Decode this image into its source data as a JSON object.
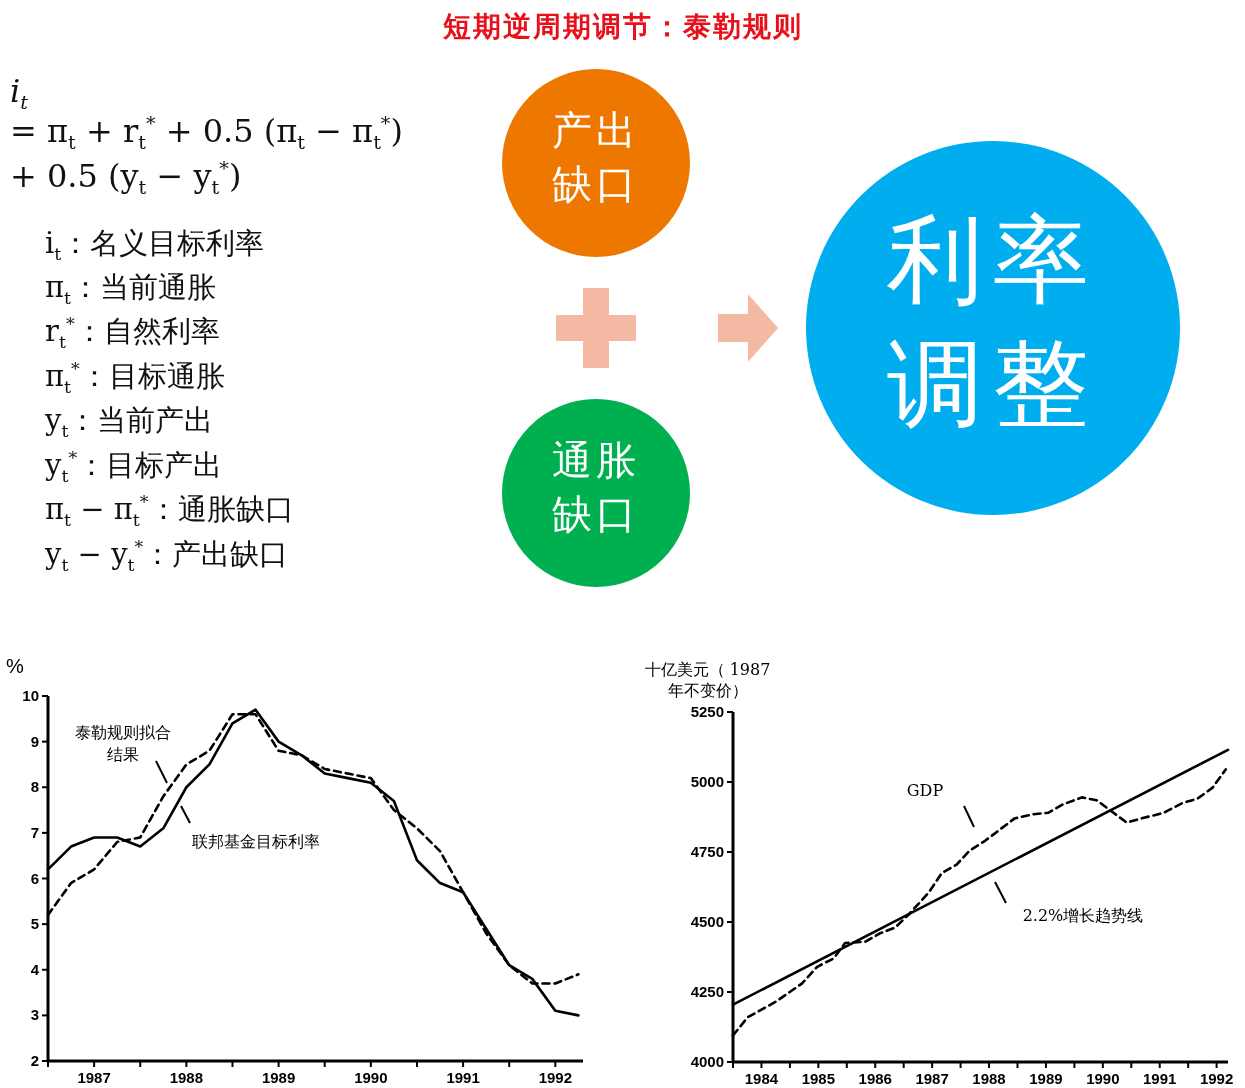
{
  "chart_data": [
    {
      "type": "other",
      "title": "短期逆周期调节：泰勒规则",
      "annotations": [
        "i$_{t}$",
        "= π$_{t}$ + r$_{t}$$^{*}$ + 0.5 (π$_{t}$ − π$_{t}$$^{*}$)",
        "+ 0.5 (y$_{t}$ − y$_{t}$$^{*}$)",
        "i$_{t}$：名义目标利率",
        "π$_{t}$：当前通胀",
        "r$_{t}$$^{*}$：自然利率",
        "π$_{t}$$^{*}$：目标通胀",
        "y$_{t}$：当前产出",
        "y$_{t}$$^{*}$：目标产出",
        "π$_{t}$ − π$_{t}$$^{*}$：通胀缺口",
        "y$_{t}$ − y$_{t}$$^{*}$：产出缺口",
        "产出缺口",
        "通胀缺口",
        "利率调整"
      ]
    },
    {
      "type": "line",
      "ylabel": "%",
      "x": [
        1986.5,
        1986.75,
        1987,
        1987.25,
        1987.5,
        1987.75,
        1988,
        1988.25,
        1988.5,
        1988.75,
        1989,
        1989.25,
        1989.5,
        1989.75,
        1990,
        1990.25,
        1990.5,
        1990.75,
        1991,
        1991.25,
        1991.5,
        1991.75,
        1992,
        1992.25
      ],
      "series": [
        {
          "color": "#000000",
          "line_style": "solid",
          "values": [
            6.2,
            6.7,
            6.9,
            6.9,
            6.7,
            7.1,
            8.0,
            8.5,
            9.4,
            9.7,
            9.0,
            8.7,
            8.3,
            8.2,
            8.1,
            7.7,
            6.4,
            5.9,
            5.7,
            4.9,
            4.1,
            3.8,
            3.1,
            3.0
          ]
        },
        {
          "color": "#000000",
          "line_style": "dashed",
          "values": [
            5.2,
            5.9,
            6.2,
            6.8,
            6.9,
            7.8,
            8.5,
            8.8,
            9.6,
            9.6,
            8.8,
            8.7,
            8.4,
            8.3,
            8.2,
            7.5,
            7.1,
            6.6,
            5.7,
            4.8,
            4.1,
            3.7,
            3.7,
            3.9
          ]
        }
      ],
      "xlim": [
        1986.5,
        1992.3
      ],
      "xticks": [
        {
          "value": 1986.5,
          "label": null
        },
        1987,
        {
          "value": 1987.5,
          "label": null
        },
        1988,
        {
          "value": 1988.5,
          "label": null
        },
        1989,
        {
          "value": 1989.5,
          "label": null
        },
        1990,
        {
          "value": 1990.5,
          "label": null
        },
        1991,
        {
          "value": 1991.5,
          "label": null
        },
        1992
      ],
      "ylim": [
        2,
        10
      ],
      "yticks": [
        2,
        3,
        4,
        5,
        6,
        7,
        8,
        9,
        10
      ],
      "annotations": [
        "泰勒规则拟合结果",
        "联邦基金目标利率"
      ]
    },
    {
      "type": "line",
      "ylabel": "十亿美元（ 1987 年不变价）",
      "series": [
        {
          "color": "#000000",
          "line_style": "solid",
          "x": [
            1984,
            1992.7
          ],
          "values": [
            4205,
            5115
          ]
        },
        {
          "color": "#000000",
          "line_style": "dashed",
          "x": [
            1984.0,
            1984.26,
            1984.75,
            1985.21,
            1985.48,
            1985.77,
            1985.97,
            1986.33,
            1986.59,
            1986.85,
            1987.08,
            1987.44,
            1987.67,
            1987.93,
            1988.16,
            1988.43,
            1988.69,
            1988.95,
            1989.28,
            1989.54,
            1989.8,
            1990.13,
            1990.39,
            1990.59,
            1990.92,
            1991.18,
            1991.57,
            1991.9,
            1992.16,
            1992.43,
            1992.66
          ],
          "values": [
            4095,
            4160,
            4215,
            4280,
            4340,
            4370,
            4425,
            4430,
            4460,
            4480,
            4525,
            4605,
            4675,
            4705,
            4755,
            4790,
            4830,
            4870,
            4885,
            4890,
            4920,
            4945,
            4935,
            4905,
            4855,
            4870,
            4890,
            4925,
            4940,
            4980,
            5045
          ]
        }
      ],
      "xlim": [
        1984,
        1992.7
      ],
      "xticks": [
        {
          "value": 1984,
          "label": null
        },
        {
          "value": 1984.5,
          "label": "1984"
        },
        {
          "value": 1985,
          "label": null
        },
        {
          "value": 1985.5,
          "label": "1985"
        },
        {
          "value": 1986,
          "label": null
        },
        {
          "value": 1986.5,
          "label": "1986"
        },
        {
          "value": 1987,
          "label": null
        },
        {
          "value": 1987.5,
          "label": "1987"
        },
        {
          "value": 1988,
          "label": null
        },
        {
          "value": 1988.5,
          "label": "1988"
        },
        {
          "value": 1989,
          "label": null
        },
        {
          "value": 1989.5,
          "label": "1989"
        },
        {
          "value": 1990,
          "label": null
        },
        {
          "value": 1990.5,
          "label": "1990"
        },
        {
          "value": 1991,
          "label": null
        },
        {
          "value": 1991.5,
          "label": "1991"
        },
        {
          "value": 1992,
          "label": null
        },
        {
          "value": 1992.5,
          "label": "1992"
        }
      ],
      "ylim": [
        4000,
        5250
      ],
      "yticks": [
        4000,
        4250,
        4500,
        4750,
        5000,
        5250
      ],
      "annotations": [
        "GDP",
        "2.2%增长趋势线"
      ]
    }
  ]
}
